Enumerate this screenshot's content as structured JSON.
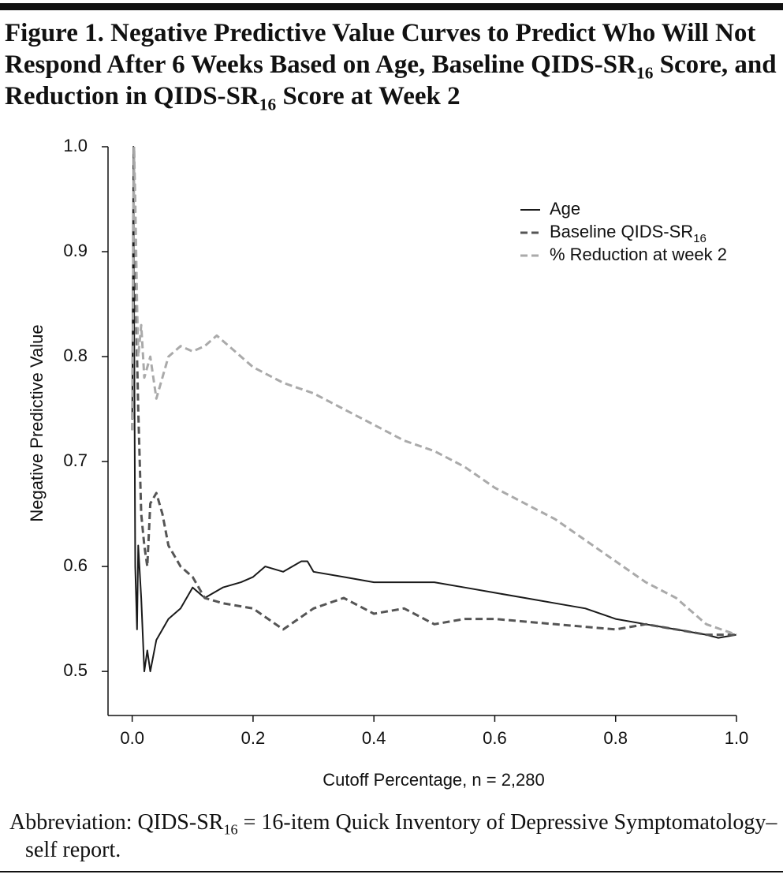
{
  "chart_data": {
    "type": "line",
    "title": "Figure 1. Negative Predictive Value Curves to Predict Who Will Not Respond After 6 Weeks Based on Age, Baseline QIDS-SR16 Score, and Reduction in QIDS-SR16 Score at Week 2",
    "x_label": "Cutoff Percentage, n = 2,280",
    "y_label": "Negative Predictive Value",
    "footnote": "Abbreviation: QIDS-SR16 = 16-item Quick Inventory of Depressive Symptomatology–self report.",
    "xlim": [
      -0.04,
      1.0
    ],
    "xticks": [
      {
        "value": 0,
        "label": "0.0"
      },
      0.2,
      0.4,
      0.6,
      0.8,
      {
        "value": 1,
        "label": "1.0"
      }
    ],
    "ylim": [
      0.458,
      1.0
    ],
    "yticks": [
      {
        "value": 0.5,
        "label": "0.5"
      },
      0.6,
      0.7,
      0.8,
      0.9,
      {
        "value": 1,
        "label": "1.0"
      }
    ],
    "legend": "upper right",
    "series": [
      {
        "name": "Age",
        "color": "#1a1a1a",
        "dash": "solid",
        "x": [
          0.0,
          0.002,
          0.005,
          0.008,
          0.01,
          0.015,
          0.02,
          0.025,
          0.03,
          0.04,
          0.05,
          0.06,
          0.08,
          0.1,
          0.12,
          0.15,
          0.18,
          0.2,
          0.22,
          0.25,
          0.28,
          0.29,
          0.3,
          0.35,
          0.4,
          0.45,
          0.5,
          0.55,
          0.6,
          0.65,
          0.7,
          0.75,
          0.8,
          0.85,
          0.9,
          0.95,
          0.97,
          1.0
        ],
        "values": [
          0.74,
          1.0,
          0.6,
          0.54,
          0.62,
          0.57,
          0.5,
          0.52,
          0.5,
          0.53,
          0.54,
          0.55,
          0.56,
          0.58,
          0.57,
          0.58,
          0.585,
          0.59,
          0.6,
          0.595,
          0.605,
          0.605,
          0.595,
          0.59,
          0.585,
          0.585,
          0.585,
          0.58,
          0.575,
          0.57,
          0.565,
          0.56,
          0.55,
          0.545,
          0.54,
          0.535,
          0.532,
          0.535
        ]
      },
      {
        "name": "Baseline QIDS-SR16",
        "color": "#555555",
        "dash": "dashed",
        "x": [
          0.0,
          0.003,
          0.005,
          0.008,
          0.01,
          0.015,
          0.02,
          0.025,
          0.03,
          0.04,
          0.05,
          0.06,
          0.07,
          0.08,
          0.1,
          0.12,
          0.15,
          0.2,
          0.25,
          0.3,
          0.35,
          0.4,
          0.45,
          0.5,
          0.55,
          0.6,
          0.7,
          0.8,
          0.85,
          0.9,
          0.95,
          1.0
        ],
        "values": [
          0.73,
          1.0,
          0.9,
          0.8,
          0.75,
          0.65,
          0.62,
          0.6,
          0.66,
          0.67,
          0.65,
          0.62,
          0.61,
          0.6,
          0.59,
          0.57,
          0.565,
          0.56,
          0.54,
          0.56,
          0.57,
          0.555,
          0.56,
          0.545,
          0.55,
          0.55,
          0.545,
          0.54,
          0.545,
          0.54,
          0.535,
          0.535
        ]
      },
      {
        "name": "% Reduction at week 2",
        "color": "#aaaaaa",
        "dash": "dashed",
        "x": [
          0.0,
          0.003,
          0.005,
          0.008,
          0.01,
          0.015,
          0.02,
          0.03,
          0.04,
          0.06,
          0.08,
          0.1,
          0.12,
          0.14,
          0.16,
          0.2,
          0.25,
          0.3,
          0.35,
          0.4,
          0.45,
          0.5,
          0.55,
          0.6,
          0.65,
          0.7,
          0.75,
          0.8,
          0.85,
          0.9,
          0.95,
          1.0
        ],
        "values": [
          0.73,
          1.0,
          0.95,
          0.85,
          0.8,
          0.83,
          0.78,
          0.8,
          0.76,
          0.8,
          0.81,
          0.805,
          0.81,
          0.82,
          0.81,
          0.79,
          0.775,
          0.765,
          0.75,
          0.735,
          0.72,
          0.71,
          0.695,
          0.675,
          0.66,
          0.645,
          0.625,
          0.605,
          0.585,
          0.57,
          0.545,
          0.535
        ]
      }
    ]
  }
}
